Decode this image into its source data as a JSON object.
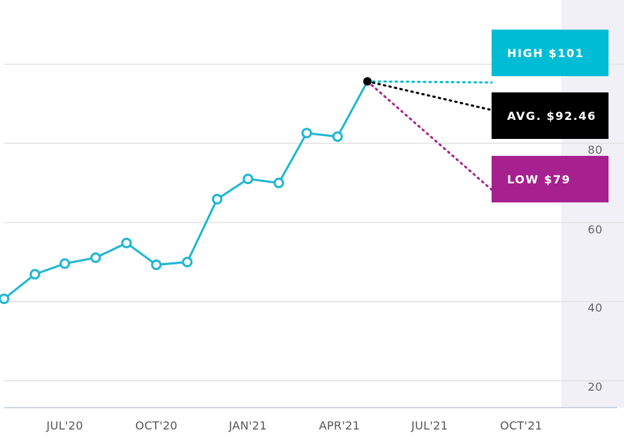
{
  "chart_data": {
    "type": "line",
    "x": [
      "2020-05-01",
      "2020-06-01",
      "2020-07-01",
      "2020-08-01",
      "2020-09-01",
      "2020-10-01",
      "2020-11-01",
      "2020-12-01",
      "2021-01-01",
      "2021-02-01",
      "2021-03-01",
      "2021-04-01",
      "2021-05-01"
    ],
    "values": [
      37.5,
      43.7,
      46.4,
      47.9,
      51.6,
      46.1,
      46.8,
      62.7,
      67.8,
      66.8,
      79.4,
      78.5,
      92.46
    ],
    "xticks": [
      "JUL'20",
      "OCT'20",
      "JAN'21",
      "APR'21",
      "JUL'21",
      "OCT'21"
    ],
    "yticks": [
      "20",
      "40",
      "60",
      "80"
    ],
    "ylim": [
      10,
      110
    ],
    "grid": true,
    "forecast": {
      "high": {
        "label": "HIGH $101",
        "value": 101,
        "color": "#00bcd4"
      },
      "avg": {
        "label": "AVG. $92.46",
        "value": 92.46,
        "color": "#000000"
      },
      "low": {
        "label": "LOW $79",
        "value": 79,
        "color": "#a6218f"
      }
    },
    "colors": {
      "line": "#1fb6d2",
      "forecast_band": "#f1f0f7",
      "grid": "#e2e2e2",
      "axis": "#bcc7d8"
    }
  }
}
